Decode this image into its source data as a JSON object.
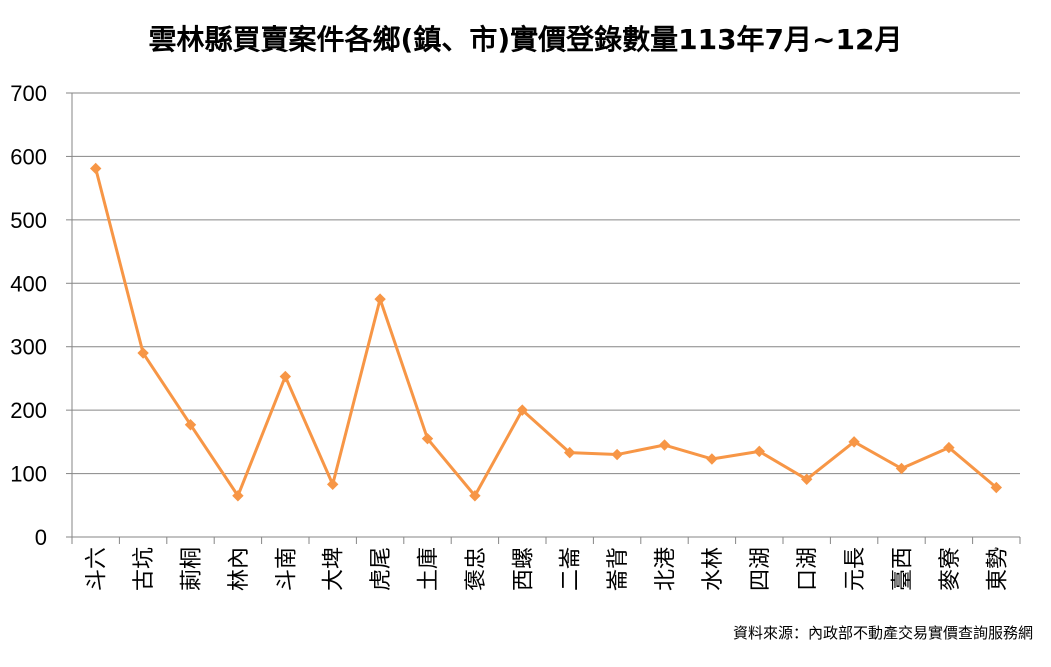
{
  "chart_data": {
    "type": "line",
    "title": "雲林縣買賣案件各鄉(鎮、市)實價登錄數量113年7月~12月",
    "xlabel": "",
    "ylabel": "",
    "ylim": [
      0,
      700
    ],
    "yticks": [
      "0",
      "100",
      "200",
      "300",
      "400",
      "500",
      "600",
      "700"
    ],
    "grid": true,
    "legend": "none",
    "line_color": "#f79646",
    "categories": [
      "斗六",
      "古坑",
      "莿桐",
      "林內",
      "斗南",
      "大埤",
      "虎尾",
      "土庫",
      "褒忠",
      "西螺",
      "二崙",
      "崙背",
      "北港",
      "水林",
      "四湖",
      "口湖",
      "元長",
      "臺西",
      "麥寮",
      "東勢"
    ],
    "values": [
      581,
      290,
      177,
      65,
      253,
      83,
      375,
      155,
      65,
      200,
      133,
      130,
      145,
      123,
      135,
      91,
      150,
      108,
      141,
      78
    ],
    "source_note": "資料來源：內政部不動產交易實價查詢服務網"
  }
}
